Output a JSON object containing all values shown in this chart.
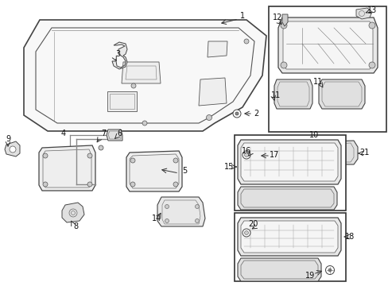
{
  "bg": "#ffffff",
  "lc": "#333333",
  "fc_light": "#f0f0f0",
  "fc_mid": "#e0e0e0",
  "fc_dark": "#cccccc",
  "fs": 7,
  "figsize": [
    4.89,
    3.6
  ],
  "dpi": 100
}
